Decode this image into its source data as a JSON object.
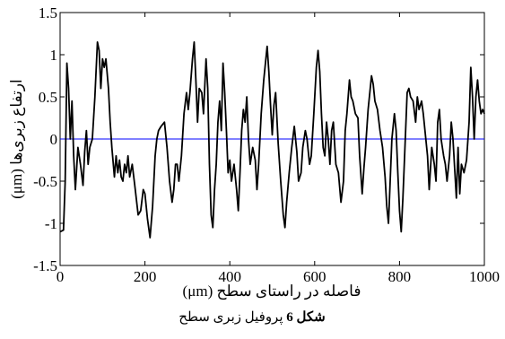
{
  "chart_data": {
    "type": "line",
    "ylabel": "ارتفاع زبری‌ها (μm)",
    "xlabel": "فاصله در راستای سطح (μm)",
    "caption": {
      "label": "شکل 6",
      "text": "پروفیل زبری سطح"
    },
    "xlim": [
      0,
      1000
    ],
    "xticks": [
      0,
      200,
      400,
      600,
      800,
      1000
    ],
    "ylim": [
      -1.5,
      1.5
    ],
    "yticks": [
      -1.5,
      -1,
      -0.5,
      0,
      0.5,
      1,
      1.5
    ],
    "color": "#000000",
    "reference_line": {
      "y": 0,
      "color": "#0000ff"
    },
    "x": [
      0,
      8,
      12,
      16,
      20,
      24,
      28,
      32,
      36,
      42,
      48,
      54,
      58,
      62,
      66,
      70,
      76,
      82,
      88,
      92,
      96,
      100,
      104,
      108,
      114,
      118,
      122,
      128,
      132,
      136,
      140,
      144,
      148,
      152,
      156,
      160,
      164,
      170,
      176,
      184,
      190,
      196,
      200,
      206,
      212,
      218,
      224,
      228,
      232,
      238,
      246,
      252,
      258,
      264,
      268,
      272,
      276,
      280,
      286,
      292,
      298,
      302,
      306,
      312,
      316,
      320,
      324,
      328,
      334,
      338,
      344,
      348,
      352,
      356,
      360,
      364,
      368,
      372,
      376,
      380,
      384,
      388,
      392,
      396,
      400,
      404,
      410,
      416,
      420,
      424,
      428,
      432,
      436,
      440,
      444,
      448,
      454,
      460,
      464,
      468,
      474,
      480,
      484,
      488,
      492,
      496,
      500,
      504,
      508,
      514,
      520,
      526,
      530,
      534,
      540,
      546,
      552,
      558,
      562,
      568,
      572,
      578,
      582,
      588,
      592,
      598,
      604,
      608,
      612,
      616,
      620,
      624,
      628,
      632,
      636,
      640,
      644,
      650,
      656,
      662,
      668,
      672,
      676,
      682,
      686,
      690,
      696,
      702,
      706,
      712,
      716,
      720,
      726,
      730,
      734,
      738,
      742,
      748,
      754,
      760,
      766,
      770,
      774,
      778,
      782,
      788,
      792,
      796,
      800,
      804,
      808,
      812,
      818,
      822,
      826,
      832,
      838,
      842,
      846,
      852,
      856,
      862,
      866,
      870,
      876,
      882,
      886,
      890,
      894,
      898,
      904,
      908,
      912,
      918,
      922,
      926,
      930,
      934,
      938,
      942,
      946,
      952,
      958,
      964,
      968,
      972,
      976,
      980,
      984,
      988,
      992,
      996,
      1000
    ],
    "values": [
      -1.1,
      -1.08,
      -0.5,
      0.9,
      0.6,
      0.0,
      0.45,
      -0.2,
      -0.6,
      -0.1,
      -0.3,
      -0.55,
      -0.15,
      0.1,
      -0.3,
      -0.1,
      0.0,
      0.5,
      1.15,
      1.05,
      0.6,
      0.95,
      0.85,
      0.95,
      0.6,
      0.2,
      -0.1,
      -0.45,
      -0.2,
      -0.4,
      -0.25,
      -0.45,
      -0.5,
      -0.3,
      -0.4,
      -0.2,
      -0.45,
      -0.3,
      -0.55,
      -0.9,
      -0.85,
      -0.6,
      -0.65,
      -0.95,
      -1.17,
      -0.8,
      -0.2,
      0.0,
      0.1,
      0.15,
      0.2,
      -0.1,
      -0.5,
      -0.75,
      -0.6,
      -0.3,
      -0.3,
      -0.5,
      -0.2,
      0.3,
      0.55,
      0.35,
      0.55,
      0.95,
      1.15,
      0.7,
      0.2,
      0.6,
      0.55,
      0.3,
      0.95,
      0.6,
      -0.3,
      -0.9,
      -1.05,
      -0.6,
      -0.3,
      0.2,
      0.45,
      0.1,
      0.9,
      0.55,
      0.1,
      -0.4,
      -0.25,
      -0.5,
      -0.3,
      -0.6,
      -0.85,
      -0.4,
      0.1,
      0.35,
      0.2,
      0.5,
      0.0,
      -0.3,
      -0.1,
      -0.25,
      -0.6,
      -0.3,
      0.3,
      0.7,
      0.9,
      1.1,
      0.8,
      0.4,
      0.05,
      0.4,
      0.55,
      -0.05,
      -0.5,
      -0.9,
      -1.05,
      -0.75,
      -0.4,
      -0.1,
      0.15,
      -0.15,
      -0.5,
      -0.4,
      -0.1,
      0.1,
      0.0,
      -0.3,
      -0.2,
      0.3,
      0.85,
      1.05,
      0.8,
      0.3,
      -0.1,
      -0.2,
      0.2,
      0.0,
      -0.3,
      0.1,
      0.2,
      -0.3,
      -0.4,
      -0.75,
      -0.5,
      0.1,
      0.3,
      0.7,
      0.5,
      0.45,
      0.3,
      0.25,
      -0.2,
      -0.65,
      -0.35,
      -0.1,
      0.35,
      0.55,
      0.75,
      0.65,
      0.45,
      0.35,
      0.1,
      -0.1,
      -0.45,
      -0.8,
      -1.0,
      -0.5,
      0.0,
      0.3,
      0.1,
      -0.4,
      -0.85,
      -1.1,
      -0.7,
      -0.2,
      0.55,
      0.6,
      0.5,
      0.45,
      0.2,
      0.5,
      0.35,
      0.45,
      0.3,
      0.0,
      -0.2,
      -0.6,
      -0.1,
      -0.3,
      -0.5,
      0.2,
      0.35,
      0.0,
      -0.2,
      -0.3,
      -0.5,
      -0.2,
      0.2,
      0.0,
      -0.35,
      -0.7,
      -0.1,
      -0.65,
      -0.3,
      -0.4,
      -0.25,
      0.2,
      0.85,
      0.5,
      0.0,
      0.5,
      0.7,
      0.45,
      0.3,
      0.35,
      0.3
    ]
  }
}
